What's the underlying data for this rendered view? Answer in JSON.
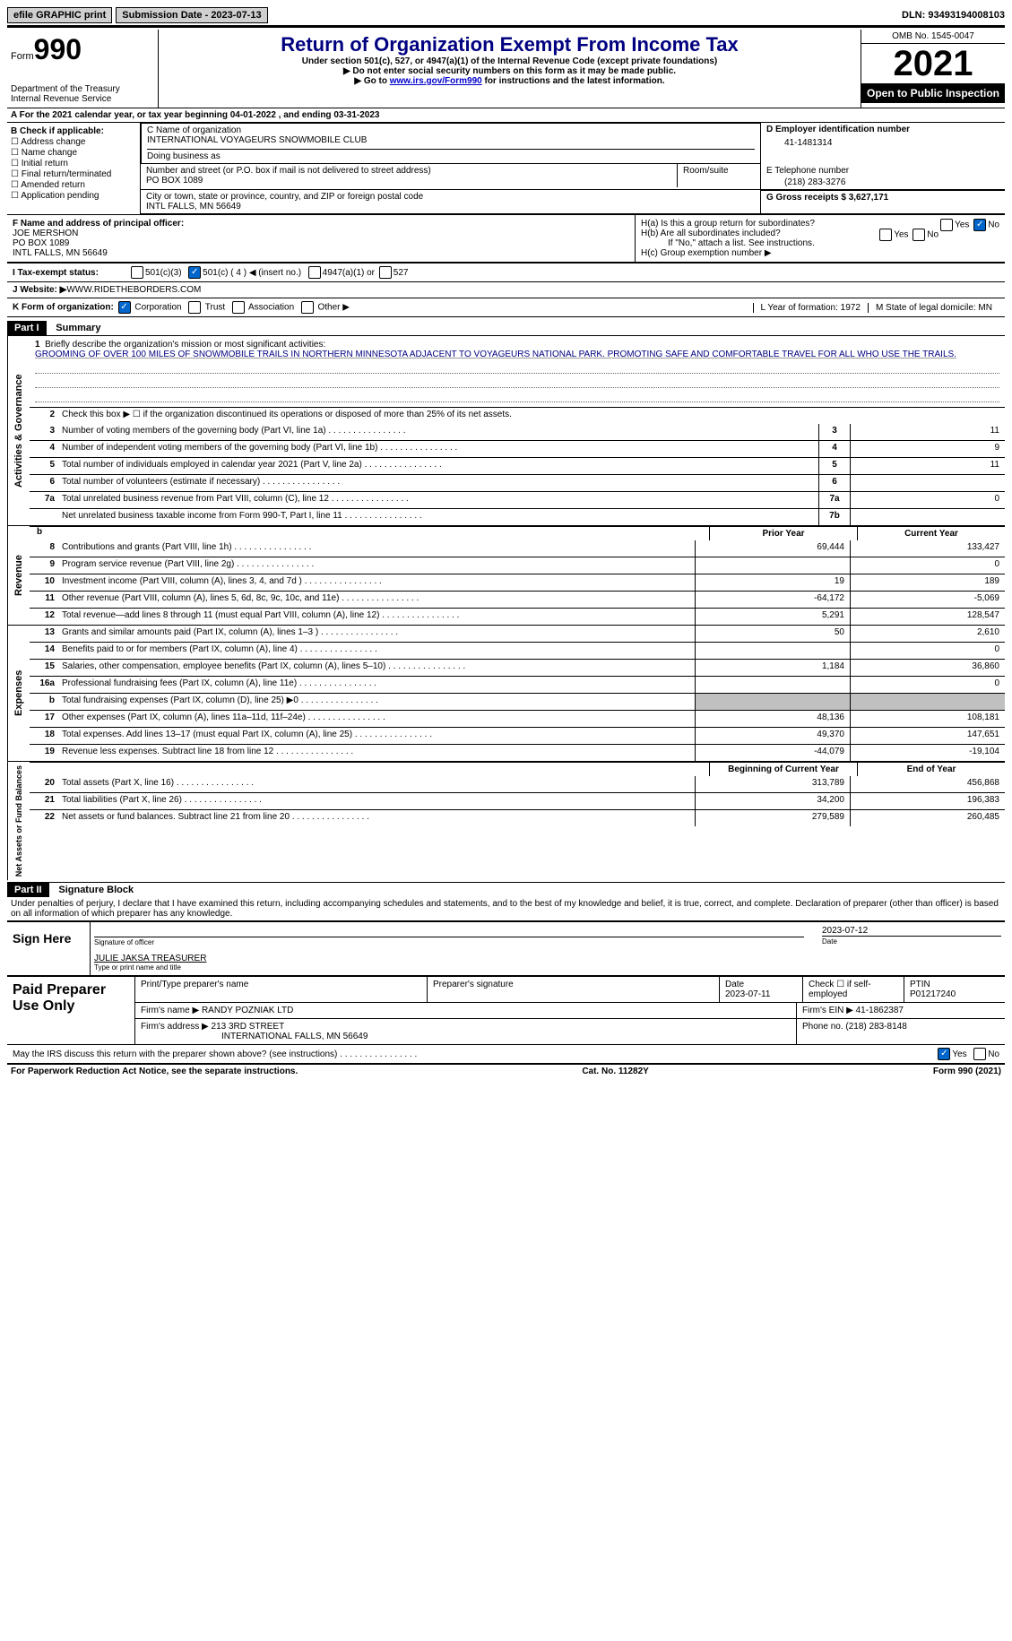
{
  "topbar": {
    "efile": "efile GRAPHIC print",
    "submission_label": "Submission Date - 2023-07-13",
    "dln_label": "DLN: 93493194008103"
  },
  "header": {
    "form_word": "Form",
    "form_num": "990",
    "dept": "Department of the Treasury",
    "irs": "Internal Revenue Service",
    "title": "Return of Organization Exempt From Income Tax",
    "sub1": "Under section 501(c), 527, or 4947(a)(1) of the Internal Revenue Code (except private foundations)",
    "sub2": "Do not enter social security numbers on this form as it may be made public.",
    "sub3a": "Go to ",
    "sub3_link": "www.irs.gov/Form990",
    "sub3b": " for instructions and the latest information.",
    "omb": "OMB No. 1545-0047",
    "year": "2021",
    "open": "Open to Public Inspection"
  },
  "section_a": {
    "text": "A  For the 2021 calendar year, or tax year beginning 04-01-2022    , and ending 03-31-2023"
  },
  "col_b": {
    "label": "B Check if applicable:",
    "items": [
      "Address change",
      "Name change",
      "Initial return",
      "Final return/terminated",
      "Amended return",
      "Application pending"
    ]
  },
  "box_c": {
    "label": "C Name of organization",
    "name": "INTERNATIONAL VOYAGEURS SNOWMOBILE CLUB",
    "dba_label": "Doing business as",
    "street_label": "Number and street (or P.O. box if mail is not delivered to street address)",
    "room_label": "Room/suite",
    "street": "PO BOX 1089",
    "city_label": "City or town, state or province, country, and ZIP or foreign postal code",
    "city": "INTL FALLS, MN  56649"
  },
  "box_d": {
    "label": "D Employer identification number",
    "value": "41-1481314"
  },
  "box_e": {
    "label": "E Telephone number",
    "value": "(218) 283-3276"
  },
  "box_g": {
    "label": "G Gross receipts $ 3,627,171"
  },
  "box_f": {
    "label": "F  Name and address of principal officer:",
    "name": "JOE MERSHON",
    "addr1": "PO BOX 1089",
    "addr2": "INTL FALLS, MN  56649"
  },
  "box_h": {
    "a_label": "H(a)  Is this a group return for subordinates?",
    "b_label": "H(b)  Are all subordinates included?",
    "b_note": "If \"No,\" attach a list. See instructions.",
    "c_label": "H(c)  Group exemption number ▶",
    "yes": "Yes",
    "no": "No"
  },
  "line_i": {
    "label": "I   Tax-exempt status:",
    "opts": [
      "501(c)(3)",
      "501(c) ( 4 ) ◀ (insert no.)",
      "4947(a)(1) or",
      "527"
    ]
  },
  "line_j": {
    "label": "J   Website: ▶",
    "value": "  WWW.RIDETHEBORDERS.COM"
  },
  "line_k": {
    "label": "K Form of organization:",
    "opts": [
      "Corporation",
      "Trust",
      "Association",
      "Other ▶"
    ],
    "l_label": "L Year of formation: 1972",
    "m_label": "M State of legal domicile: MN"
  },
  "part1": {
    "header": "Part I",
    "title": "Summary"
  },
  "summary": {
    "activities_label": "Activities & Governance",
    "revenue_label": "Revenue",
    "expenses_label": "Expenses",
    "netassets_label": "Net Assets or Fund Balances",
    "line1_label": "Briefly describe the organization's mission or most significant activities:",
    "line1_text": "GROOMING OF OVER 100 MILES OF SNOWMOBILE TRAILS IN NORTHERN MINNESOTA ADJACENT TO VOYAGEURS NATIONAL PARK. PROMOTING SAFE AND COMFORTABLE TRAVEL FOR ALL WHO USE THE TRAILS.",
    "line2": "Check this box ▶ ☐  if the organization discontinued its operations or disposed of more than 25% of its net assets.",
    "rows_simple": [
      {
        "n": "3",
        "t": "Number of voting members of the governing body (Part VI, line 1a)",
        "box": "3",
        "v": "11"
      },
      {
        "n": "4",
        "t": "Number of independent voting members of the governing body (Part VI, line 1b)",
        "box": "4",
        "v": "9"
      },
      {
        "n": "5",
        "t": "Total number of individuals employed in calendar year 2021 (Part V, line 2a)",
        "box": "5",
        "v": "11"
      },
      {
        "n": "6",
        "t": "Total number of volunteers (estimate if necessary)",
        "box": "6",
        "v": ""
      },
      {
        "n": "7a",
        "t": "Total unrelated business revenue from Part VIII, column (C), line 12",
        "box": "7a",
        "v": "0"
      },
      {
        "n": "",
        "t": "Net unrelated business taxable income from Form 990-T, Part I, line 11",
        "box": "7b",
        "v": ""
      }
    ],
    "col_headers": {
      "b": "b",
      "prior": "Prior Year",
      "current": "Current Year"
    },
    "revenue_rows": [
      {
        "n": "8",
        "t": "Contributions and grants (Part VIII, line 1h)",
        "p": "69,444",
        "c": "133,427"
      },
      {
        "n": "9",
        "t": "Program service revenue (Part VIII, line 2g)",
        "p": "",
        "c": "0"
      },
      {
        "n": "10",
        "t": "Investment income (Part VIII, column (A), lines 3, 4, and 7d )",
        "p": "19",
        "c": "189"
      },
      {
        "n": "11",
        "t": "Other revenue (Part VIII, column (A), lines 5, 6d, 8c, 9c, 10c, and 11e)",
        "p": "-64,172",
        "c": "-5,069"
      },
      {
        "n": "12",
        "t": "Total revenue—add lines 8 through 11 (must equal Part VIII, column (A), line 12)",
        "p": "5,291",
        "c": "128,547"
      }
    ],
    "expense_rows": [
      {
        "n": "13",
        "t": "Grants and similar amounts paid (Part IX, column (A), lines 1–3 )",
        "p": "50",
        "c": "2,610"
      },
      {
        "n": "14",
        "t": "Benefits paid to or for members (Part IX, column (A), line 4)",
        "p": "",
        "c": "0"
      },
      {
        "n": "15",
        "t": "Salaries, other compensation, employee benefits (Part IX, column (A), lines 5–10)",
        "p": "1,184",
        "c": "36,860"
      },
      {
        "n": "16a",
        "t": "Professional fundraising fees (Part IX, column (A), line 11e)",
        "p": "",
        "c": "0"
      },
      {
        "n": "b",
        "t": "Total fundraising expenses (Part IX, column (D), line 25) ▶0",
        "p": "",
        "c": "",
        "shaded": true
      },
      {
        "n": "17",
        "t": "Other expenses (Part IX, column (A), lines 11a–11d, 11f–24e)",
        "p": "48,136",
        "c": "108,181"
      },
      {
        "n": "18",
        "t": "Total expenses. Add lines 13–17 (must equal Part IX, column (A), line 25)",
        "p": "49,370",
        "c": "147,651"
      },
      {
        "n": "19",
        "t": "Revenue less expenses. Subtract line 18 from line 12",
        "p": "-44,079",
        "c": "-19,104"
      }
    ],
    "net_headers": {
      "begin": "Beginning of Current Year",
      "end": "End of Year"
    },
    "net_rows": [
      {
        "n": "20",
        "t": "Total assets (Part X, line 16)",
        "p": "313,789",
        "c": "456,868"
      },
      {
        "n": "21",
        "t": "Total liabilities (Part X, line 26)",
        "p": "34,200",
        "c": "196,383"
      },
      {
        "n": "22",
        "t": "Net assets or fund balances. Subtract line 21 from line 20",
        "p": "279,589",
        "c": "260,485"
      }
    ]
  },
  "part2": {
    "header": "Part II",
    "title": "Signature Block",
    "penalty": "Under penalties of perjury, I declare that I have examined this return, including accompanying schedules and statements, and to the best of my knowledge and belief, it is true, correct, and complete. Declaration of preparer (other than officer) is based on all information of which preparer has any knowledge."
  },
  "sign": {
    "label": "Sign Here",
    "sig_of_officer": "Signature of officer",
    "date": "Date",
    "date_val": "2023-07-12",
    "name": "JULIE JAKSA  TREASURER",
    "name_label": "Type or print name and title"
  },
  "paid": {
    "label": "Paid Preparer Use Only",
    "h1": "Print/Type preparer's name",
    "h2": "Preparer's signature",
    "h3": "Date",
    "h3v": "2023-07-11",
    "h4": "Check ☐ if self-employed",
    "h5": "PTIN",
    "h5v": "P01217240",
    "firm_label": "Firm's name    ▶",
    "firm_name": "RANDY POZNIAK LTD",
    "firm_ein_label": "Firm's EIN ▶",
    "firm_ein": "41-1862387",
    "firm_addr_label": "Firm's address ▶",
    "firm_addr1": "213 3RD STREET",
    "firm_addr2": "INTERNATIONAL FALLS, MN  56649",
    "phone_label": "Phone no.",
    "phone": "(218) 283-8148"
  },
  "discuss": {
    "text": "May the IRS discuss this return with the preparer shown above? (see instructions)",
    "yes": "Yes",
    "no": "No"
  },
  "footer": {
    "left": "For Paperwork Reduction Act Notice, see the separate instructions.",
    "mid": "Cat. No. 11282Y",
    "right": "Form 990 (2021)"
  }
}
